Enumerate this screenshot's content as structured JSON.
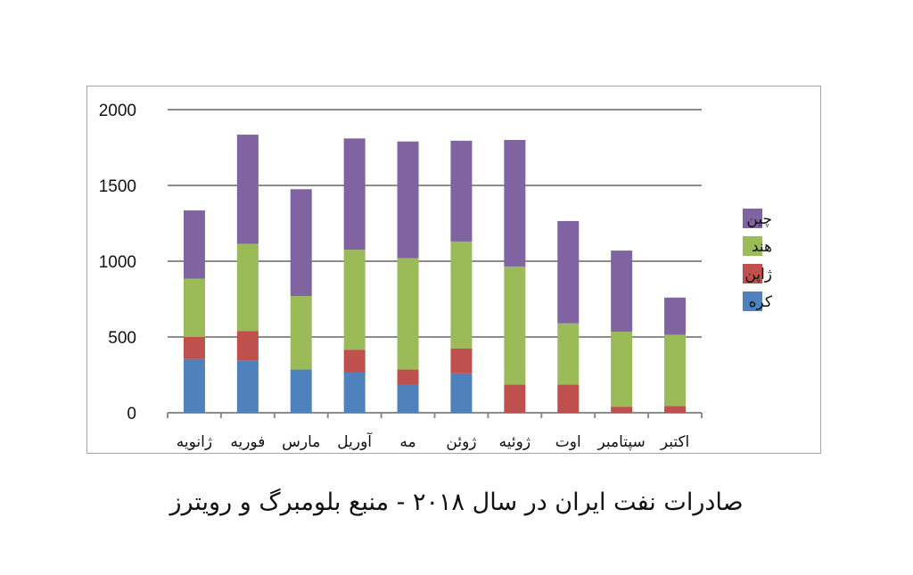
{
  "caption": "صادرات نفت ایران در سال ۲۰۱۸  - منبع بلومبرگ و رویترز",
  "chart_data": {
    "type": "bar",
    "stacked": true,
    "categories": [
      "ژانویه",
      "فوریه",
      "مارس",
      "آوریل",
      "مه",
      "ژوئن",
      "ژوئیه",
      "اوت",
      "سپتامبر",
      "اکتبر"
    ],
    "series": [
      {
        "name": "کره",
        "color": "#4f81bd",
        "values": [
          355,
          345,
          285,
          265,
          185,
          260,
          0,
          0,
          0,
          0
        ]
      },
      {
        "name": "ژاپن",
        "color": "#c0504d",
        "values": [
          145,
          195,
          0,
          150,
          100,
          165,
          185,
          185,
          40,
          45
        ]
      },
      {
        "name": "هند",
        "color": "#9bbb59",
        "values": [
          385,
          575,
          485,
          660,
          735,
          705,
          780,
          405,
          495,
          470
        ]
      },
      {
        "name": "چین",
        "color": "#8064a2",
        "values": [
          450,
          720,
          705,
          735,
          770,
          665,
          835,
          675,
          535,
          245
        ]
      }
    ],
    "yticks": [
      0,
      500,
      1000,
      1500,
      2000
    ],
    "ylim": [
      0,
      2000
    ],
    "grid": true,
    "legend": "right"
  }
}
